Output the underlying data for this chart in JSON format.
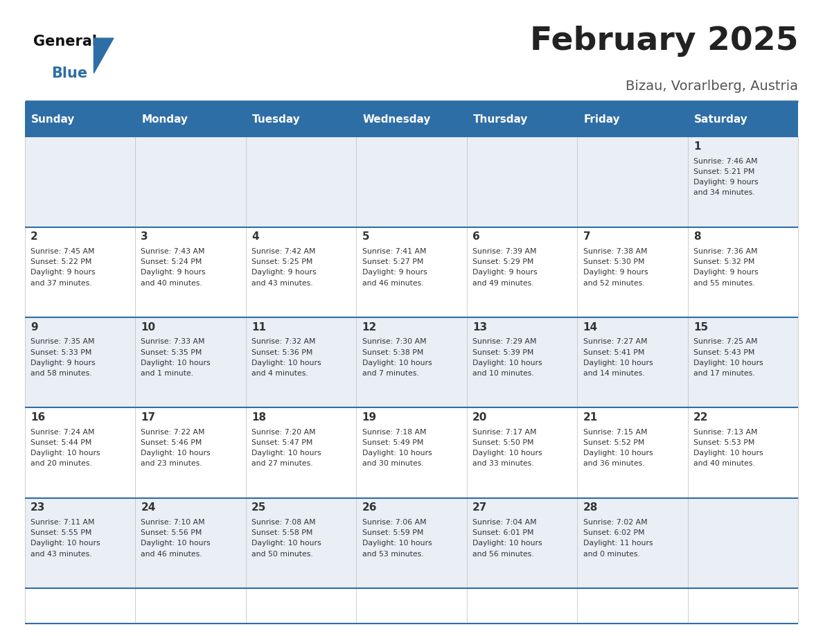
{
  "title": "February 2025",
  "subtitle": "Bizau, Vorarlberg, Austria",
  "header_color": "#2E6EA6",
  "header_text_color": "#FFFFFF",
  "background_color": "#FFFFFF",
  "cell_bg_even": "#EAEFF5",
  "cell_bg_odd": "#FFFFFF",
  "text_color": "#333333",
  "day_names": [
    "Sunday",
    "Monday",
    "Tuesday",
    "Wednesday",
    "Thursday",
    "Friday",
    "Saturday"
  ],
  "weeks": [
    [
      {
        "day": "",
        "info": ""
      },
      {
        "day": "",
        "info": ""
      },
      {
        "day": "",
        "info": ""
      },
      {
        "day": "",
        "info": ""
      },
      {
        "day": "",
        "info": ""
      },
      {
        "day": "",
        "info": ""
      },
      {
        "day": "1",
        "info": "Sunrise: 7:46 AM\nSunset: 5:21 PM\nDaylight: 9 hours\nand 34 minutes."
      }
    ],
    [
      {
        "day": "2",
        "info": "Sunrise: 7:45 AM\nSunset: 5:22 PM\nDaylight: 9 hours\nand 37 minutes."
      },
      {
        "day": "3",
        "info": "Sunrise: 7:43 AM\nSunset: 5:24 PM\nDaylight: 9 hours\nand 40 minutes."
      },
      {
        "day": "4",
        "info": "Sunrise: 7:42 AM\nSunset: 5:25 PM\nDaylight: 9 hours\nand 43 minutes."
      },
      {
        "day": "5",
        "info": "Sunrise: 7:41 AM\nSunset: 5:27 PM\nDaylight: 9 hours\nand 46 minutes."
      },
      {
        "day": "6",
        "info": "Sunrise: 7:39 AM\nSunset: 5:29 PM\nDaylight: 9 hours\nand 49 minutes."
      },
      {
        "day": "7",
        "info": "Sunrise: 7:38 AM\nSunset: 5:30 PM\nDaylight: 9 hours\nand 52 minutes."
      },
      {
        "day": "8",
        "info": "Sunrise: 7:36 AM\nSunset: 5:32 PM\nDaylight: 9 hours\nand 55 minutes."
      }
    ],
    [
      {
        "day": "9",
        "info": "Sunrise: 7:35 AM\nSunset: 5:33 PM\nDaylight: 9 hours\nand 58 minutes."
      },
      {
        "day": "10",
        "info": "Sunrise: 7:33 AM\nSunset: 5:35 PM\nDaylight: 10 hours\nand 1 minute."
      },
      {
        "day": "11",
        "info": "Sunrise: 7:32 AM\nSunset: 5:36 PM\nDaylight: 10 hours\nand 4 minutes."
      },
      {
        "day": "12",
        "info": "Sunrise: 7:30 AM\nSunset: 5:38 PM\nDaylight: 10 hours\nand 7 minutes."
      },
      {
        "day": "13",
        "info": "Sunrise: 7:29 AM\nSunset: 5:39 PM\nDaylight: 10 hours\nand 10 minutes."
      },
      {
        "day": "14",
        "info": "Sunrise: 7:27 AM\nSunset: 5:41 PM\nDaylight: 10 hours\nand 14 minutes."
      },
      {
        "day": "15",
        "info": "Sunrise: 7:25 AM\nSunset: 5:43 PM\nDaylight: 10 hours\nand 17 minutes."
      }
    ],
    [
      {
        "day": "16",
        "info": "Sunrise: 7:24 AM\nSunset: 5:44 PM\nDaylight: 10 hours\nand 20 minutes."
      },
      {
        "day": "17",
        "info": "Sunrise: 7:22 AM\nSunset: 5:46 PM\nDaylight: 10 hours\nand 23 minutes."
      },
      {
        "day": "18",
        "info": "Sunrise: 7:20 AM\nSunset: 5:47 PM\nDaylight: 10 hours\nand 27 minutes."
      },
      {
        "day": "19",
        "info": "Sunrise: 7:18 AM\nSunset: 5:49 PM\nDaylight: 10 hours\nand 30 minutes."
      },
      {
        "day": "20",
        "info": "Sunrise: 7:17 AM\nSunset: 5:50 PM\nDaylight: 10 hours\nand 33 minutes."
      },
      {
        "day": "21",
        "info": "Sunrise: 7:15 AM\nSunset: 5:52 PM\nDaylight: 10 hours\nand 36 minutes."
      },
      {
        "day": "22",
        "info": "Sunrise: 7:13 AM\nSunset: 5:53 PM\nDaylight: 10 hours\nand 40 minutes."
      }
    ],
    [
      {
        "day": "23",
        "info": "Sunrise: 7:11 AM\nSunset: 5:55 PM\nDaylight: 10 hours\nand 43 minutes."
      },
      {
        "day": "24",
        "info": "Sunrise: 7:10 AM\nSunset: 5:56 PM\nDaylight: 10 hours\nand 46 minutes."
      },
      {
        "day": "25",
        "info": "Sunrise: 7:08 AM\nSunset: 5:58 PM\nDaylight: 10 hours\nand 50 minutes."
      },
      {
        "day": "26",
        "info": "Sunrise: 7:06 AM\nSunset: 5:59 PM\nDaylight: 10 hours\nand 53 minutes."
      },
      {
        "day": "27",
        "info": "Sunrise: 7:04 AM\nSunset: 6:01 PM\nDaylight: 10 hours\nand 56 minutes."
      },
      {
        "day": "28",
        "info": "Sunrise: 7:02 AM\nSunset: 6:02 PM\nDaylight: 11 hours\nand 0 minutes."
      },
      {
        "day": "",
        "info": ""
      }
    ]
  ],
  "logo_triangle_color": "#2E6EA6"
}
